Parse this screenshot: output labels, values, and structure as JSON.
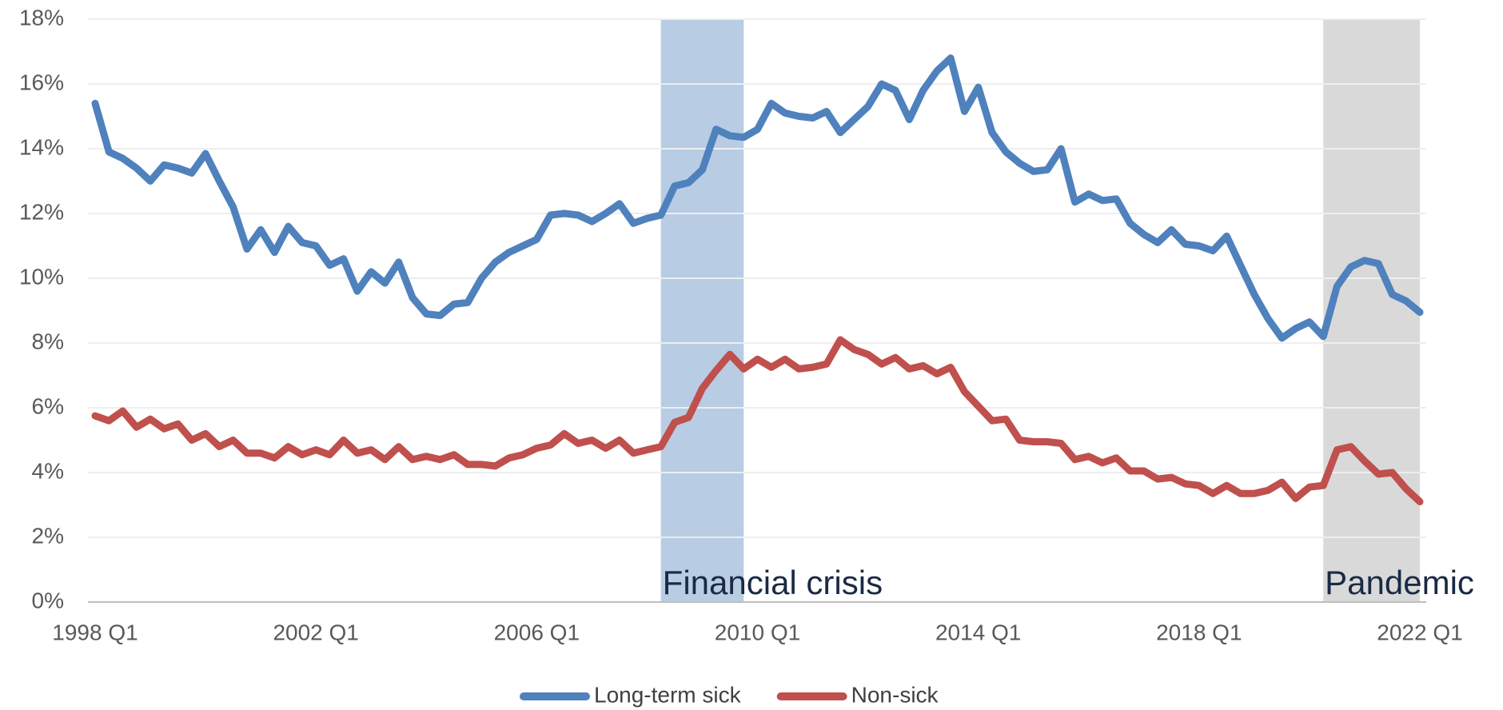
{
  "chart_data": {
    "type": "line",
    "categories": [
      "1998 Q1",
      null,
      null,
      null,
      null,
      null,
      null,
      null,
      null,
      null,
      null,
      null,
      null,
      null,
      null,
      null,
      "2002 Q1",
      null,
      null,
      null,
      null,
      null,
      null,
      null,
      null,
      null,
      null,
      null,
      null,
      null,
      null,
      null,
      "2006 Q1",
      null,
      null,
      null,
      null,
      null,
      null,
      null,
      null,
      null,
      null,
      null,
      null,
      null,
      null,
      null,
      "2010 Q1",
      null,
      null,
      null,
      null,
      null,
      null,
      null,
      null,
      null,
      null,
      null,
      null,
      null,
      null,
      null,
      "2014 Q1",
      null,
      null,
      null,
      null,
      null,
      null,
      null,
      null,
      null,
      null,
      null,
      null,
      null,
      null,
      null,
      "2018 Q1",
      null,
      null,
      null,
      null,
      null,
      null,
      null,
      null,
      null,
      null,
      null,
      null,
      null,
      null,
      null,
      "2022 Q1"
    ],
    "series": [
      {
        "name": "Long-term sick",
        "color": "#4f81bd",
        "values": [
          15.4,
          13.9,
          13.7,
          13.4,
          13.0,
          13.5,
          13.4,
          13.25,
          13.85,
          13.0,
          12.2,
          10.9,
          11.5,
          10.8,
          11.6,
          11.1,
          11.0,
          10.4,
          10.6,
          9.6,
          10.2,
          9.85,
          10.5,
          9.4,
          8.9,
          8.85,
          9.2,
          9.25,
          10.0,
          10.5,
          10.8,
          11.0,
          11.2,
          11.95,
          12.0,
          11.95,
          11.75,
          12.0,
          12.3,
          11.7,
          11.85,
          11.95,
          12.85,
          12.95,
          13.35,
          14.6,
          14.4,
          14.35,
          14.6,
          15.4,
          15.1,
          15.0,
          14.95,
          15.15,
          14.5,
          14.9,
          15.3,
          16.0,
          15.8,
          14.9,
          15.8,
          16.4,
          16.8,
          15.15,
          15.9,
          14.5,
          13.9,
          13.55,
          13.3,
          13.35,
          14.0,
          12.35,
          12.6,
          12.4,
          12.45,
          11.7,
          11.35,
          11.1,
          11.5,
          11.05,
          11.0,
          10.85,
          11.3,
          10.4,
          9.5,
          8.75,
          8.15,
          8.45,
          8.65,
          8.2,
          9.75,
          10.35,
          10.55,
          10.45,
          9.5,
          9.3,
          8.95
        ]
      },
      {
        "name": "Non-sick",
        "color": "#c0504d",
        "values": [
          5.75,
          5.6,
          5.9,
          5.4,
          5.65,
          5.35,
          5.5,
          5.0,
          5.2,
          4.8,
          5.0,
          4.6,
          4.6,
          4.45,
          4.8,
          4.55,
          4.7,
          4.55,
          5.0,
          4.6,
          4.7,
          4.4,
          4.8,
          4.4,
          4.5,
          4.4,
          4.55,
          4.25,
          4.25,
          4.2,
          4.45,
          4.55,
          4.75,
          4.85,
          5.2,
          4.9,
          5.0,
          4.75,
          5.0,
          4.6,
          4.7,
          4.8,
          5.55,
          5.7,
          6.6,
          7.15,
          7.65,
          7.2,
          7.5,
          7.25,
          7.5,
          7.2,
          7.25,
          7.35,
          8.1,
          7.8,
          7.65,
          7.35,
          7.55,
          7.2,
          7.3,
          7.05,
          7.25,
          6.5,
          6.05,
          5.6,
          5.65,
          5.0,
          4.95,
          4.95,
          4.9,
          4.4,
          4.5,
          4.3,
          4.45,
          4.05,
          4.05,
          3.8,
          3.85,
          3.65,
          3.6,
          3.35,
          3.6,
          3.35,
          3.35,
          3.45,
          3.7,
          3.2,
          3.55,
          3.6,
          4.7,
          4.8,
          4.35,
          3.95,
          4.0,
          3.5,
          3.1
        ]
      }
    ],
    "bands": [
      {
        "label": "Financial crisis",
        "start": 41,
        "end": 47,
        "color": "#b8cce4"
      },
      {
        "label": "Pandemic",
        "start": 89,
        "end": 96,
        "color": "#d9d9d9"
      }
    ],
    "ylim": [
      0,
      18
    ],
    "yticks": [
      {
        "value": 0,
        "label": "0%"
      },
      {
        "value": 2,
        "label": "2%"
      },
      {
        "value": 4,
        "label": "4%"
      },
      {
        "value": 6,
        "label": "6%"
      },
      {
        "value": 8,
        "label": "8%"
      },
      {
        "value": 10,
        "label": "10%"
      },
      {
        "value": 12,
        "label": "12%"
      },
      {
        "value": 14,
        "label": "14%"
      },
      {
        "value": 16,
        "label": "16%"
      },
      {
        "value": 18,
        "label": "18%"
      }
    ],
    "grid": true,
    "legend": "bottom"
  }
}
